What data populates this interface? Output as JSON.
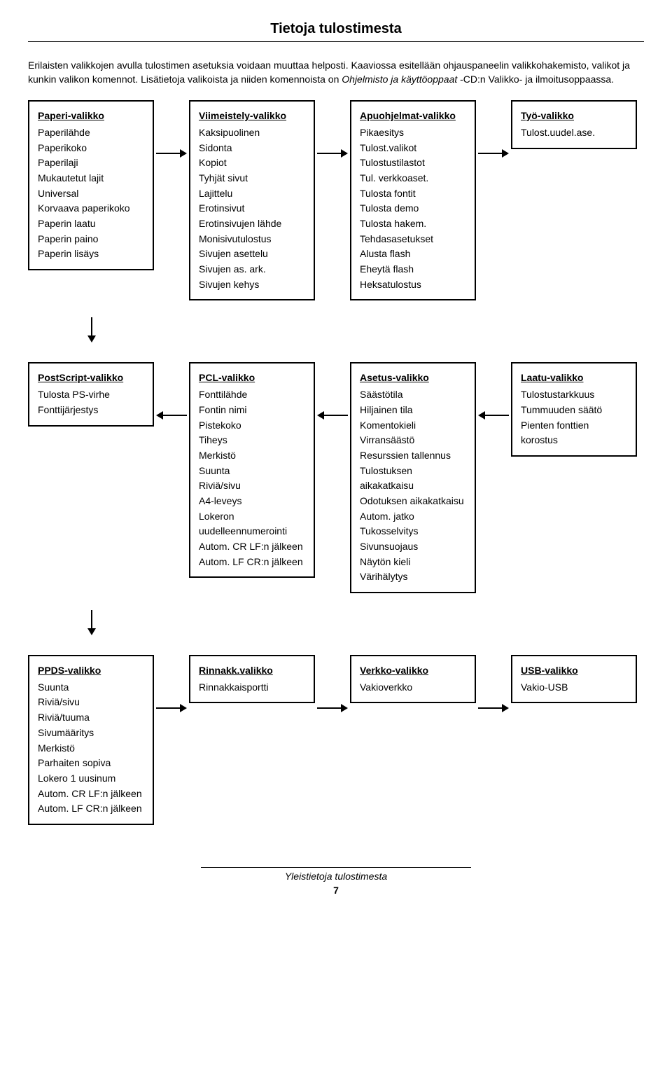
{
  "header": {
    "title": "Tietoja tulostimesta"
  },
  "intro": {
    "line1": "Erilaisten valikkojen avulla tulostimen asetuksia voidaan muuttaa helposti. Kaaviossa esitellään ohjauspaneelin valikkohakemisto, valikot ja kunkin valikon komennot.",
    "line2_pre": "Lisätietoja valikoista ja niiden komennoista on ",
    "line2_italic": "Ohjelmisto ja käyttöoppaat",
    "line2_post": " -CD:n Valikko- ja ilmoitusoppaassa."
  },
  "rows": [
    {
      "direction": "right",
      "boxes": [
        {
          "title": "Paperi-valikko",
          "items": [
            "Paperilähde",
            "Paperikoko",
            "Paperilaji",
            "Mukautetut lajit",
            "Universal",
            "Korvaava paperikoko",
            "Paperin laatu",
            "Paperin paino",
            "Paperin lisäys"
          ]
        },
        {
          "title": "Viimeistely-valikko",
          "items": [
            "Kaksipuolinen",
            "Sidonta",
            "Kopiot",
            "Tyhjät sivut",
            "Lajittelu",
            "Erotinsivut",
            "Erotinsivujen lähde",
            "Monisivutulostus",
            "Sivujen asettelu",
            "Sivujen as. ark.",
            "Sivujen kehys"
          ]
        },
        {
          "title": "Apuohjelmat-valikko",
          "items": [
            "Pikaesitys",
            "Tulost.valikot",
            "Tulostustilastot",
            "Tul. verkkoaset.",
            "Tulosta fontit",
            "Tulosta demo",
            "Tulosta hakem.",
            "Tehdasasetukset",
            "Alusta flash",
            "Eheytä flash",
            "Heksatulostus"
          ]
        },
        {
          "title": "Työ-valikko",
          "items": [
            "Tulost.uudel.ase."
          ]
        }
      ]
    },
    {
      "direction": "left",
      "boxes": [
        {
          "title": "PostScript-valikko",
          "items": [
            "Tulosta PS-virhe",
            "Fonttijärjestys"
          ]
        },
        {
          "title": "PCL-valikko",
          "items": [
            "Fonttilähde",
            "Fontin nimi",
            "Pistekoko",
            "Tiheys",
            "Merkistö",
            "Suunta",
            "Riviä/sivu",
            "A4-leveys",
            "Lokeron uudelleennumerointi",
            "Autom. CR LF:n jälkeen",
            "Autom. LF CR:n jälkeen"
          ]
        },
        {
          "title": "Asetus-valikko",
          "items": [
            "Säästötila",
            "Hiljainen tila",
            "Komentokieli",
            "Virransäästö",
            "Resurssien tallennus",
            "Tulostuksen aikakatkaisu",
            "Odotuksen aikakatkaisu",
            "Autom. jatko",
            "Tukosselvitys",
            "Sivunsuojaus",
            "Näytön kieli",
            "Värihälytys"
          ]
        },
        {
          "title": "Laatu-valikko",
          "items": [
            "Tulostustarkkuus",
            "Tummuuden säätö",
            "Pienten fonttien korostus"
          ]
        }
      ]
    },
    {
      "direction": "right",
      "boxes": [
        {
          "title": "PPDS-valikko",
          "items": [
            "Suunta",
            "Riviä/sivu",
            "Riviä/tuuma",
            "Sivumääritys",
            "Merkistö",
            "Parhaiten sopiva",
            "Lokero 1 uusinum",
            "Autom. CR LF:n jälkeen",
            "Autom. LF CR:n jälkeen"
          ]
        },
        {
          "title": "Rinnakk.valikko",
          "items": [
            "Rinnakkaisportti"
          ]
        },
        {
          "title": "Verkko-valikko",
          "items": [
            "Vakioverkko"
          ]
        },
        {
          "title": "USB-valikko",
          "items": [
            "Vakio-USB"
          ]
        }
      ]
    }
  ],
  "footer": {
    "section": "Yleistietoja tulostimesta",
    "page": "7"
  }
}
